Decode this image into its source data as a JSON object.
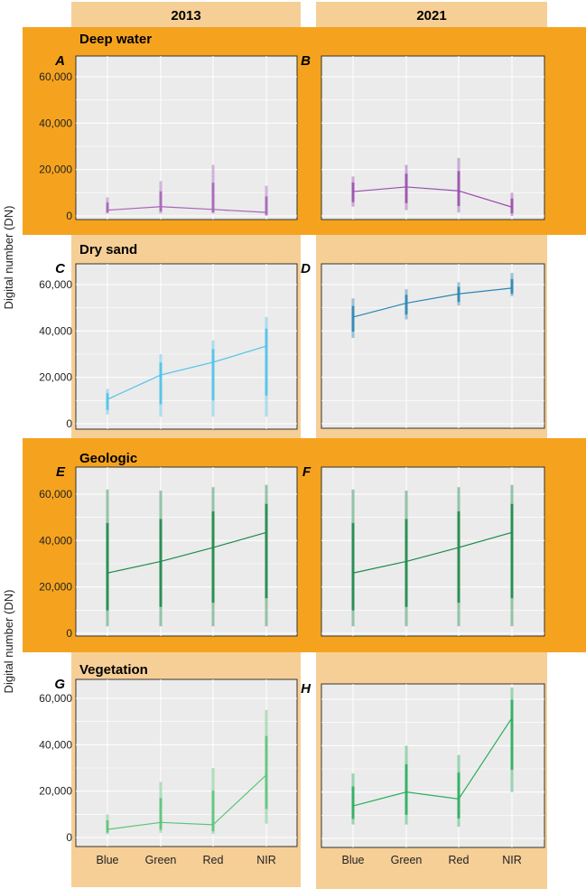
{
  "chart_data": {
    "type": "line",
    "columns": [
      "2013",
      "2021"
    ],
    "ylabel": "Digital number (DN)",
    "categories": [
      "Blue",
      "Green",
      "Red",
      "NIR"
    ],
    "yticks": [
      "0",
      "20,000",
      "40,000",
      "60,000"
    ],
    "ytick_values": [
      0,
      20000,
      40000,
      60000
    ],
    "ylim": [
      0,
      65000
    ],
    "grid": true,
    "rows": [
      {
        "title": "Deep water",
        "highlight": true
      },
      {
        "title": "Dry sand",
        "highlight": false
      },
      {
        "title": "Geologic",
        "highlight": true
      },
      {
        "title": "Vegetation",
        "highlight": false
      }
    ],
    "panels": [
      {
        "letter": "A",
        "row": 0,
        "year": "2013",
        "color": "#a765b8",
        "mean": [
          2500,
          4000,
          2800,
          1500
        ],
        "range_min": [
          1000,
          1000,
          1000,
          0
        ],
        "range_max": [
          8000,
          15000,
          22000,
          13000
        ]
      },
      {
        "letter": "B",
        "row": 0,
        "year": "2021",
        "color": "#9b4fae",
        "mean": [
          10500,
          12500,
          10800,
          3800
        ],
        "range_min": [
          4000,
          2500,
          1500,
          0
        ],
        "range_max": [
          17000,
          22000,
          25000,
          10000
        ]
      },
      {
        "letter": "C",
        "row": 1,
        "year": "2013",
        "color": "#4fc3e8",
        "mean": [
          10500,
          21000,
          26500,
          33500
        ],
        "range_min": [
          4000,
          3000,
          3000,
          3000
        ],
        "range_max": [
          15000,
          30000,
          36000,
          46000
        ]
      },
      {
        "letter": "D",
        "row": 1,
        "year": "2021",
        "color": "#2a86b4",
        "mean": [
          46000,
          52000,
          56000,
          58500
        ],
        "range_min": [
          37000,
          45000,
          51000,
          55000
        ],
        "range_max": [
          54000,
          58000,
          61000,
          65000
        ]
      },
      {
        "letter": "E",
        "row": 2,
        "year": "2013",
        "color": "#1e8a4a",
        "mean": [
          26000,
          31000,
          37000,
          43500
        ],
        "range_min": [
          3000,
          3000,
          3000,
          3000
        ],
        "range_max": [
          62000,
          61500,
          63000,
          64000
        ]
      },
      {
        "letter": "F",
        "row": 2,
        "year": "2021",
        "color": "#1e8a4a",
        "mean": [
          26000,
          31000,
          37000,
          43500
        ],
        "range_min": [
          3000,
          3000,
          3000,
          3000
        ],
        "range_max": [
          62000,
          61500,
          63000,
          64000
        ]
      },
      {
        "letter": "G",
        "row": 3,
        "year": "2013",
        "color": "#5cc47a",
        "mean": [
          3500,
          6500,
          5500,
          27000
        ],
        "range_min": [
          1500,
          2000,
          1500,
          6000
        ],
        "range_max": [
          10000,
          24000,
          30000,
          55000
        ]
      },
      {
        "letter": "H",
        "row": 3,
        "year": "2021",
        "color": "#2aad5f",
        "mean": [
          14000,
          20000,
          17000,
          52000
        ],
        "range_min": [
          6000,
          6000,
          5000,
          20000
        ],
        "range_max": [
          28000,
          40000,
          36000,
          65000
        ]
      }
    ]
  },
  "colors": {
    "column_bg": "#f6cf96",
    "highlight_band": "#f5a31f",
    "panel_bg": "#ebebeb"
  }
}
